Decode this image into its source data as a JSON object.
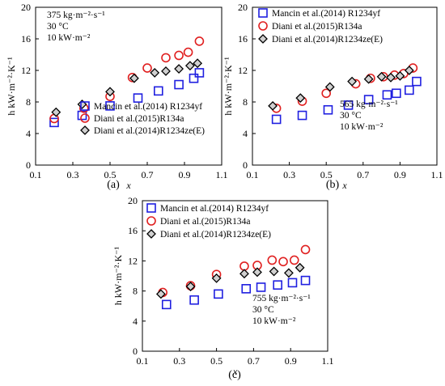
{
  "figure": {
    "panel_labels": [
      "(a)",
      "(b)",
      "(c)"
    ]
  },
  "chart_data": [
    {
      "type": "scatter",
      "panel": "(a)",
      "xlabel": "x",
      "ylabel": "h kW·m⁻²·K⁻¹",
      "xlim": [
        0.1,
        1.1
      ],
      "ylim": [
        0,
        20
      ],
      "xticks": [
        "0.1",
        "0.3",
        "0.5",
        "0.7",
        "0.9",
        "1.1"
      ],
      "yticks": [
        "0",
        "4",
        "8",
        "12",
        "16",
        "20"
      ],
      "annotation": [
        "375 kg·m⁻²·s⁻¹",
        "30 °C",
        "10 kW·m⁻²"
      ],
      "legend_position": "bottom-right",
      "series": [
        {
          "name": "Mancin et al.(2014) R1234yf",
          "marker": "square",
          "color": "#1f1fe0",
          "x": [
            0.2,
            0.35,
            0.5,
            0.65,
            0.76,
            0.87,
            0.95,
            0.98
          ],
          "y": [
            5.4,
            6.3,
            7.5,
            8.5,
            9.4,
            10.2,
            11.0,
            11.7
          ]
        },
        {
          "name": "Diani et al.(2015)R134a",
          "marker": "circle",
          "color": "#e02020",
          "x": [
            0.2,
            0.36,
            0.5,
            0.62,
            0.7,
            0.8,
            0.87,
            0.92,
            0.98
          ],
          "y": [
            5.9,
            7.2,
            8.7,
            11.1,
            12.3,
            13.6,
            13.9,
            14.3,
            15.7
          ]
        },
        {
          "name": "Diani et al.(2014)R1234ze(E)",
          "marker": "diamond",
          "color": "#000000",
          "x": [
            0.21,
            0.35,
            0.5,
            0.63,
            0.74,
            0.8,
            0.87,
            0.93,
            0.97
          ],
          "y": [
            6.7,
            7.7,
            9.3,
            11.0,
            11.7,
            11.9,
            12.2,
            12.6,
            12.9
          ]
        }
      ]
    },
    {
      "type": "scatter",
      "panel": "(b)",
      "xlabel": "x",
      "ylabel": "h kW·m⁻²·K⁻¹",
      "xlim": [
        0.1,
        1.1
      ],
      "ylim": [
        0,
        20
      ],
      "xticks": [
        "0.1",
        "0.3",
        "0.5",
        "0.7",
        "0.9",
        "1.1"
      ],
      "yticks": [
        "0",
        "4",
        "8",
        "12",
        "16",
        "20"
      ],
      "annotation": [
        "565 kg·m⁻²·s⁻¹",
        "30 °C",
        "10 kW·m⁻²"
      ],
      "legend_position": "top-left",
      "series": [
        {
          "name": "Mancin et al.(2014) R1234yf",
          "marker": "square",
          "color": "#1f1fe0",
          "x": [
            0.23,
            0.37,
            0.51,
            0.62,
            0.73,
            0.83,
            0.88,
            0.95,
            0.99
          ],
          "y": [
            5.8,
            6.3,
            7.0,
            7.6,
            8.3,
            8.9,
            9.1,
            9.5,
            10.6
          ]
        },
        {
          "name": "Diani et al.(2015)R134a",
          "marker": "circle",
          "color": "#e02020",
          "x": [
            0.23,
            0.37,
            0.5,
            0.66,
            0.74,
            0.81,
            0.87,
            0.92,
            0.97
          ],
          "y": [
            7.2,
            8.1,
            9.1,
            10.3,
            11.0,
            11.2,
            11.4,
            11.6,
            12.3
          ]
        },
        {
          "name": "Diani et al.(2014)R1234ze(E)",
          "marker": "diamond",
          "color": "#000000",
          "x": [
            0.21,
            0.36,
            0.52,
            0.64,
            0.73,
            0.8,
            0.85,
            0.9,
            0.95
          ],
          "y": [
            7.5,
            8.5,
            9.9,
            10.6,
            10.9,
            11.2,
            11.1,
            11.3,
            12.0
          ]
        }
      ]
    },
    {
      "type": "scatter",
      "panel": "(c)",
      "xlabel": "x",
      "ylabel": "h kW·m⁻²·K⁻¹",
      "xlim": [
        0.1,
        1.1
      ],
      "ylim": [
        0,
        20
      ],
      "xticks": [
        "0.1",
        "0.3",
        "0.5",
        "0.7",
        "0.9",
        "1.1"
      ],
      "yticks": [
        "0",
        "4",
        "8",
        "12",
        "16",
        "20"
      ],
      "annotation": [
        "755 kg·m⁻²·s⁻¹",
        "30 °C",
        "10 kW·m⁻²"
      ],
      "legend_position": "top-left",
      "series": [
        {
          "name": "Mancin et al.(2014) R1234yf",
          "marker": "square",
          "color": "#1f1fe0",
          "x": [
            0.23,
            0.38,
            0.51,
            0.66,
            0.74,
            0.83,
            0.91,
            0.98
          ],
          "y": [
            6.2,
            6.8,
            7.6,
            8.3,
            8.5,
            8.8,
            9.1,
            9.4
          ]
        },
        {
          "name": "Diani et al.(2015)R134a",
          "marker": "circle",
          "color": "#e02020",
          "x": [
            0.21,
            0.36,
            0.5,
            0.65,
            0.72,
            0.8,
            0.86,
            0.92,
            0.98
          ],
          "y": [
            7.8,
            8.7,
            10.2,
            11.3,
            11.4,
            12.1,
            11.9,
            12.1,
            13.5
          ]
        },
        {
          "name": "Diani et al.(2014)R1234ze(E)",
          "marker": "diamond",
          "color": "#000000",
          "x": [
            0.2,
            0.36,
            0.5,
            0.65,
            0.72,
            0.81,
            0.89,
            0.95
          ],
          "y": [
            7.6,
            8.6,
            9.7,
            10.3,
            10.5,
            10.6,
            10.4,
            11.1
          ]
        }
      ]
    }
  ]
}
